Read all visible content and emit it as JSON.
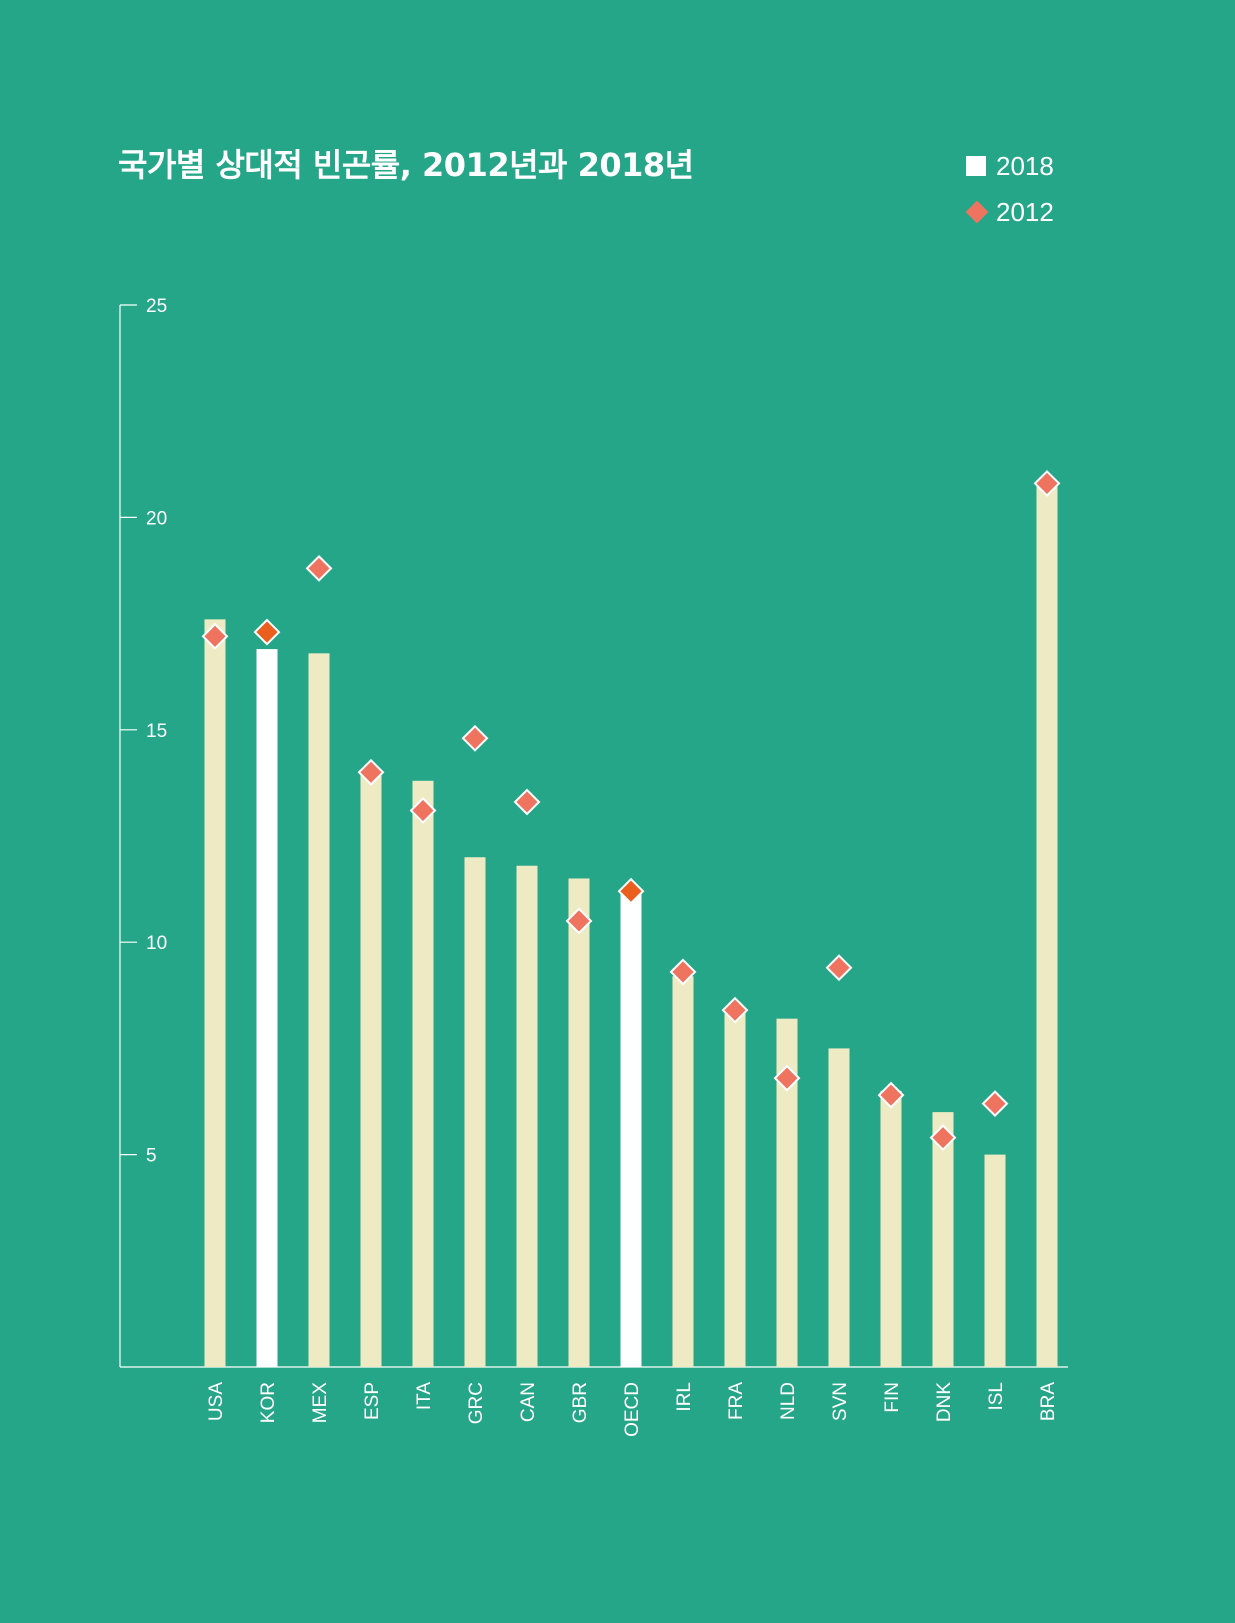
{
  "title": "국가별 상대적 빈곤률, 2012년과 2018년",
  "legend": {
    "items": [
      {
        "label": "2018",
        "shape": "square",
        "color": "#ffffff"
      },
      {
        "label": "2012",
        "shape": "diamond",
        "color": "#ee7460"
      }
    ]
  },
  "colors": {
    "background": "#26a688",
    "bar": "#eeeac4",
    "bar_highlight": "#ffffff",
    "marker": "#ee7460",
    "marker_highlight": "#ea5f1e",
    "axis": "#ffffff"
  },
  "chart_data": {
    "type": "bar",
    "title": "국가별 상대적 빈곤률, 2012년과 2018년",
    "xlabel": "",
    "ylabel": "",
    "ylim": [
      0,
      25
    ],
    "yticks": [
      5,
      10,
      15,
      20,
      25
    ],
    "legend_position": "top-right",
    "grid": false,
    "categories": [
      "USA",
      "KOR",
      "MEX",
      "ESP",
      "ITA",
      "GRC",
      "CAN",
      "GBR",
      "OECD",
      "IRL",
      "FRA",
      "NLD",
      "SVN",
      "FIN",
      "DNK",
      "ISL",
      "BRA"
    ],
    "highlighted": [
      "KOR",
      "OECD"
    ],
    "series": [
      {
        "name": "2018",
        "mark": "bar",
        "values": [
          17.6,
          16.9,
          16.8,
          14.0,
          13.8,
          12.0,
          11.8,
          11.5,
          11.2,
          9.2,
          8.4,
          8.2,
          7.5,
          6.5,
          6.0,
          5.0,
          20.8
        ]
      },
      {
        "name": "2012",
        "mark": "diamond",
        "values": [
          17.2,
          17.3,
          18.8,
          14.0,
          13.1,
          14.8,
          13.3,
          10.5,
          11.2,
          9.3,
          8.4,
          6.8,
          9.4,
          6.4,
          5.4,
          6.2,
          20.8
        ]
      }
    ]
  }
}
